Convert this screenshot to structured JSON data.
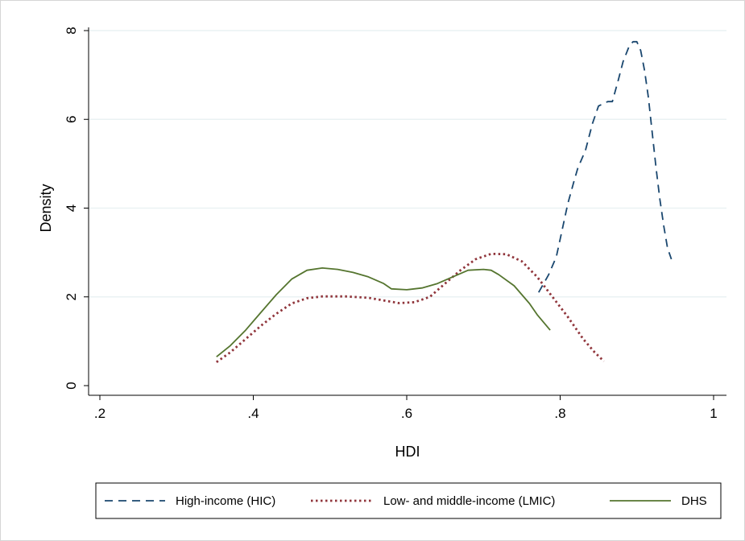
{
  "chart_data": {
    "type": "line",
    "title": "",
    "xlabel": "HDI",
    "ylabel": "Density",
    "xlim": [
      0.2,
      1.0
    ],
    "ylim": [
      0,
      8
    ],
    "grid": true,
    "x_ticks": [
      {
        "value": 0.2,
        "label": ".2"
      },
      {
        "value": 0.4,
        "label": ".4"
      },
      {
        "value": 0.6,
        "label": ".6"
      },
      {
        "value": 0.8,
        "label": ".8"
      },
      {
        "value": 1.0,
        "label": "1"
      }
    ],
    "y_ticks": [
      {
        "value": 0,
        "label": "0"
      },
      {
        "value": 2,
        "label": "2"
      },
      {
        "value": 4,
        "label": "4"
      },
      {
        "value": 6,
        "label": "6"
      },
      {
        "value": 8,
        "label": "8"
      }
    ],
    "legend_position": "bottom",
    "series": [
      {
        "name": "High-income (HIC)",
        "color": "#1a476f",
        "style": "dashed",
        "x": [
          0.772,
          0.785,
          0.795,
          0.8,
          0.81,
          0.818,
          0.823,
          0.833,
          0.842,
          0.85,
          0.856,
          0.862,
          0.868,
          0.876,
          0.882,
          0.89,
          0.895,
          0.9,
          0.905,
          0.91,
          0.915,
          0.92,
          0.925,
          0.93,
          0.935,
          0.94,
          0.945
        ],
        "y": [
          2.1,
          2.5,
          2.9,
          3.3,
          4.1,
          4.6,
          4.9,
          5.3,
          5.9,
          6.3,
          6.35,
          6.4,
          6.4,
          6.9,
          7.3,
          7.65,
          7.75,
          7.75,
          7.55,
          7.1,
          6.5,
          5.7,
          4.9,
          4.2,
          3.6,
          3.1,
          2.85
        ]
      },
      {
        "name": "Low- and middle-income (LMIC)",
        "color": "#90353b",
        "style": "dotted",
        "x": [
          0.352,
          0.37,
          0.39,
          0.41,
          0.43,
          0.45,
          0.47,
          0.49,
          0.52,
          0.55,
          0.57,
          0.59,
          0.61,
          0.63,
          0.65,
          0.67,
          0.69,
          0.71,
          0.73,
          0.75,
          0.77,
          0.79,
          0.81,
          0.83,
          0.845,
          0.857
        ],
        "y": [
          0.53,
          0.75,
          1.05,
          1.35,
          1.62,
          1.85,
          1.97,
          2.01,
          2.01,
          1.98,
          1.92,
          1.86,
          1.88,
          2.0,
          2.3,
          2.6,
          2.85,
          2.97,
          2.96,
          2.8,
          2.45,
          2.0,
          1.55,
          1.05,
          0.75,
          0.55
        ]
      },
      {
        "name": "DHS",
        "color": "#55752f",
        "style": "solid",
        "x": [
          0.352,
          0.37,
          0.39,
          0.41,
          0.43,
          0.45,
          0.47,
          0.49,
          0.51,
          0.53,
          0.55,
          0.57,
          0.58,
          0.6,
          0.62,
          0.64,
          0.66,
          0.68,
          0.7,
          0.71,
          0.72,
          0.74,
          0.76,
          0.77,
          0.787
        ],
        "y": [
          0.65,
          0.9,
          1.25,
          1.65,
          2.05,
          2.4,
          2.6,
          2.65,
          2.62,
          2.55,
          2.45,
          2.3,
          2.18,
          2.16,
          2.2,
          2.3,
          2.45,
          2.6,
          2.62,
          2.6,
          2.5,
          2.25,
          1.85,
          1.6,
          1.25
        ]
      }
    ]
  }
}
